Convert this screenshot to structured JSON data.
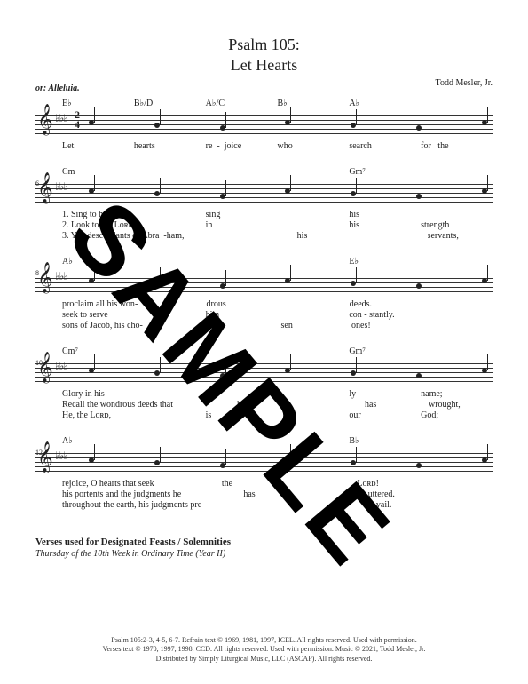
{
  "title_line1": "Psalm 105:",
  "title_line2": "Let Hearts",
  "composer": "Todd Mesler, Jr.",
  "alleluia_note": "or: Alleluia.",
  "watermark": "SAMPLE",
  "systems": [
    {
      "measure": "",
      "chords": [
        "E♭",
        "B♭/D",
        "A♭/C",
        "B♭",
        "A♭",
        ""
      ],
      "show_timesig": true,
      "timesig_top": "2",
      "timesig_bot": "4",
      "lyrics": [
        [
          "Let",
          "hearts",
          "re  -  joice",
          "who",
          "search",
          "for   the"
        ]
      ]
    },
    {
      "measure": "6",
      "chords": [
        "Cm",
        "",
        "",
        "",
        "Gm⁷",
        ""
      ],
      "lyrics": [
        [
          "1. Sing to him,",
          "",
          "sing",
          "",
          "his",
          ""
        ],
        [
          "2. Look to the Lᴏʀᴅ",
          "",
          "in",
          "",
          "his",
          "strength"
        ],
        [
          "3. You descendants of Abra  -",
          "ham,",
          "",
          "his",
          "",
          "servants,"
        ]
      ]
    },
    {
      "measure": "8",
      "chords": [
        "A♭",
        "",
        "",
        "",
        "E♭",
        ""
      ],
      "lyrics": [
        [
          "proclaim all his won",
          "-",
          "drous",
          "",
          "deeds.",
          ""
        ],
        [
          "seek to serve",
          "",
          "him",
          "",
          "con - stantly.",
          ""
        ],
        [
          "sons of Jacob, his cho",
          "-",
          "",
          "sen",
          "ones!",
          ""
        ]
      ]
    },
    {
      "measure": "10",
      "chords": [
        "Cm⁷",
        "",
        "",
        "",
        "Gm⁷",
        ""
      ],
      "lyrics": [
        [
          "Glory in his",
          "",
          "ho",
          "-",
          "ly",
          "name;"
        ],
        [
          "Recall the wondrous deeds that",
          "",
          "he",
          "",
          "has",
          "wrought,"
        ],
        [
          "He, the Lᴏʀᴅ,",
          "",
          "is",
          "",
          "our",
          "God;"
        ]
      ]
    },
    {
      "measure": "12",
      "chords": [
        "A♭",
        "",
        "",
        "",
        "B♭",
        ""
      ],
      "lyrics": [
        [
          "rejoice, O hearts that seek",
          "",
          "the",
          "",
          "Lᴏʀᴅ!",
          ""
        ],
        [
          "his portents and the judgments he",
          "",
          "has",
          "",
          "uttered.",
          ""
        ],
        [
          "throughout the earth, his judgments pre",
          "-",
          "",
          "",
          "vail.",
          ""
        ]
      ]
    }
  ],
  "designated": {
    "heading": "Verses used for Designated Feasts / Solemnities",
    "sub": "Thursday of the 10th Week in Ordinary Time (Year II)"
  },
  "footer": {
    "line1": "Psalm 105:2-3, 4-5, 6-7. Refrain text © 1969, 1981, 1997, ICEL. All rights reserved. Used with permission.",
    "line2": "Verses text © 1970, 1997, 1998, CCD. All rights reserved. Used with permission. Music © 2021, Todd Mesler, Jr.",
    "line3": "Distributed by  Simply Liturgical Music, LLC (ASCAP). All rights reserved."
  },
  "colors": {
    "bg": "#ffffff",
    "ink": "#222222",
    "watermark": "#000000"
  }
}
